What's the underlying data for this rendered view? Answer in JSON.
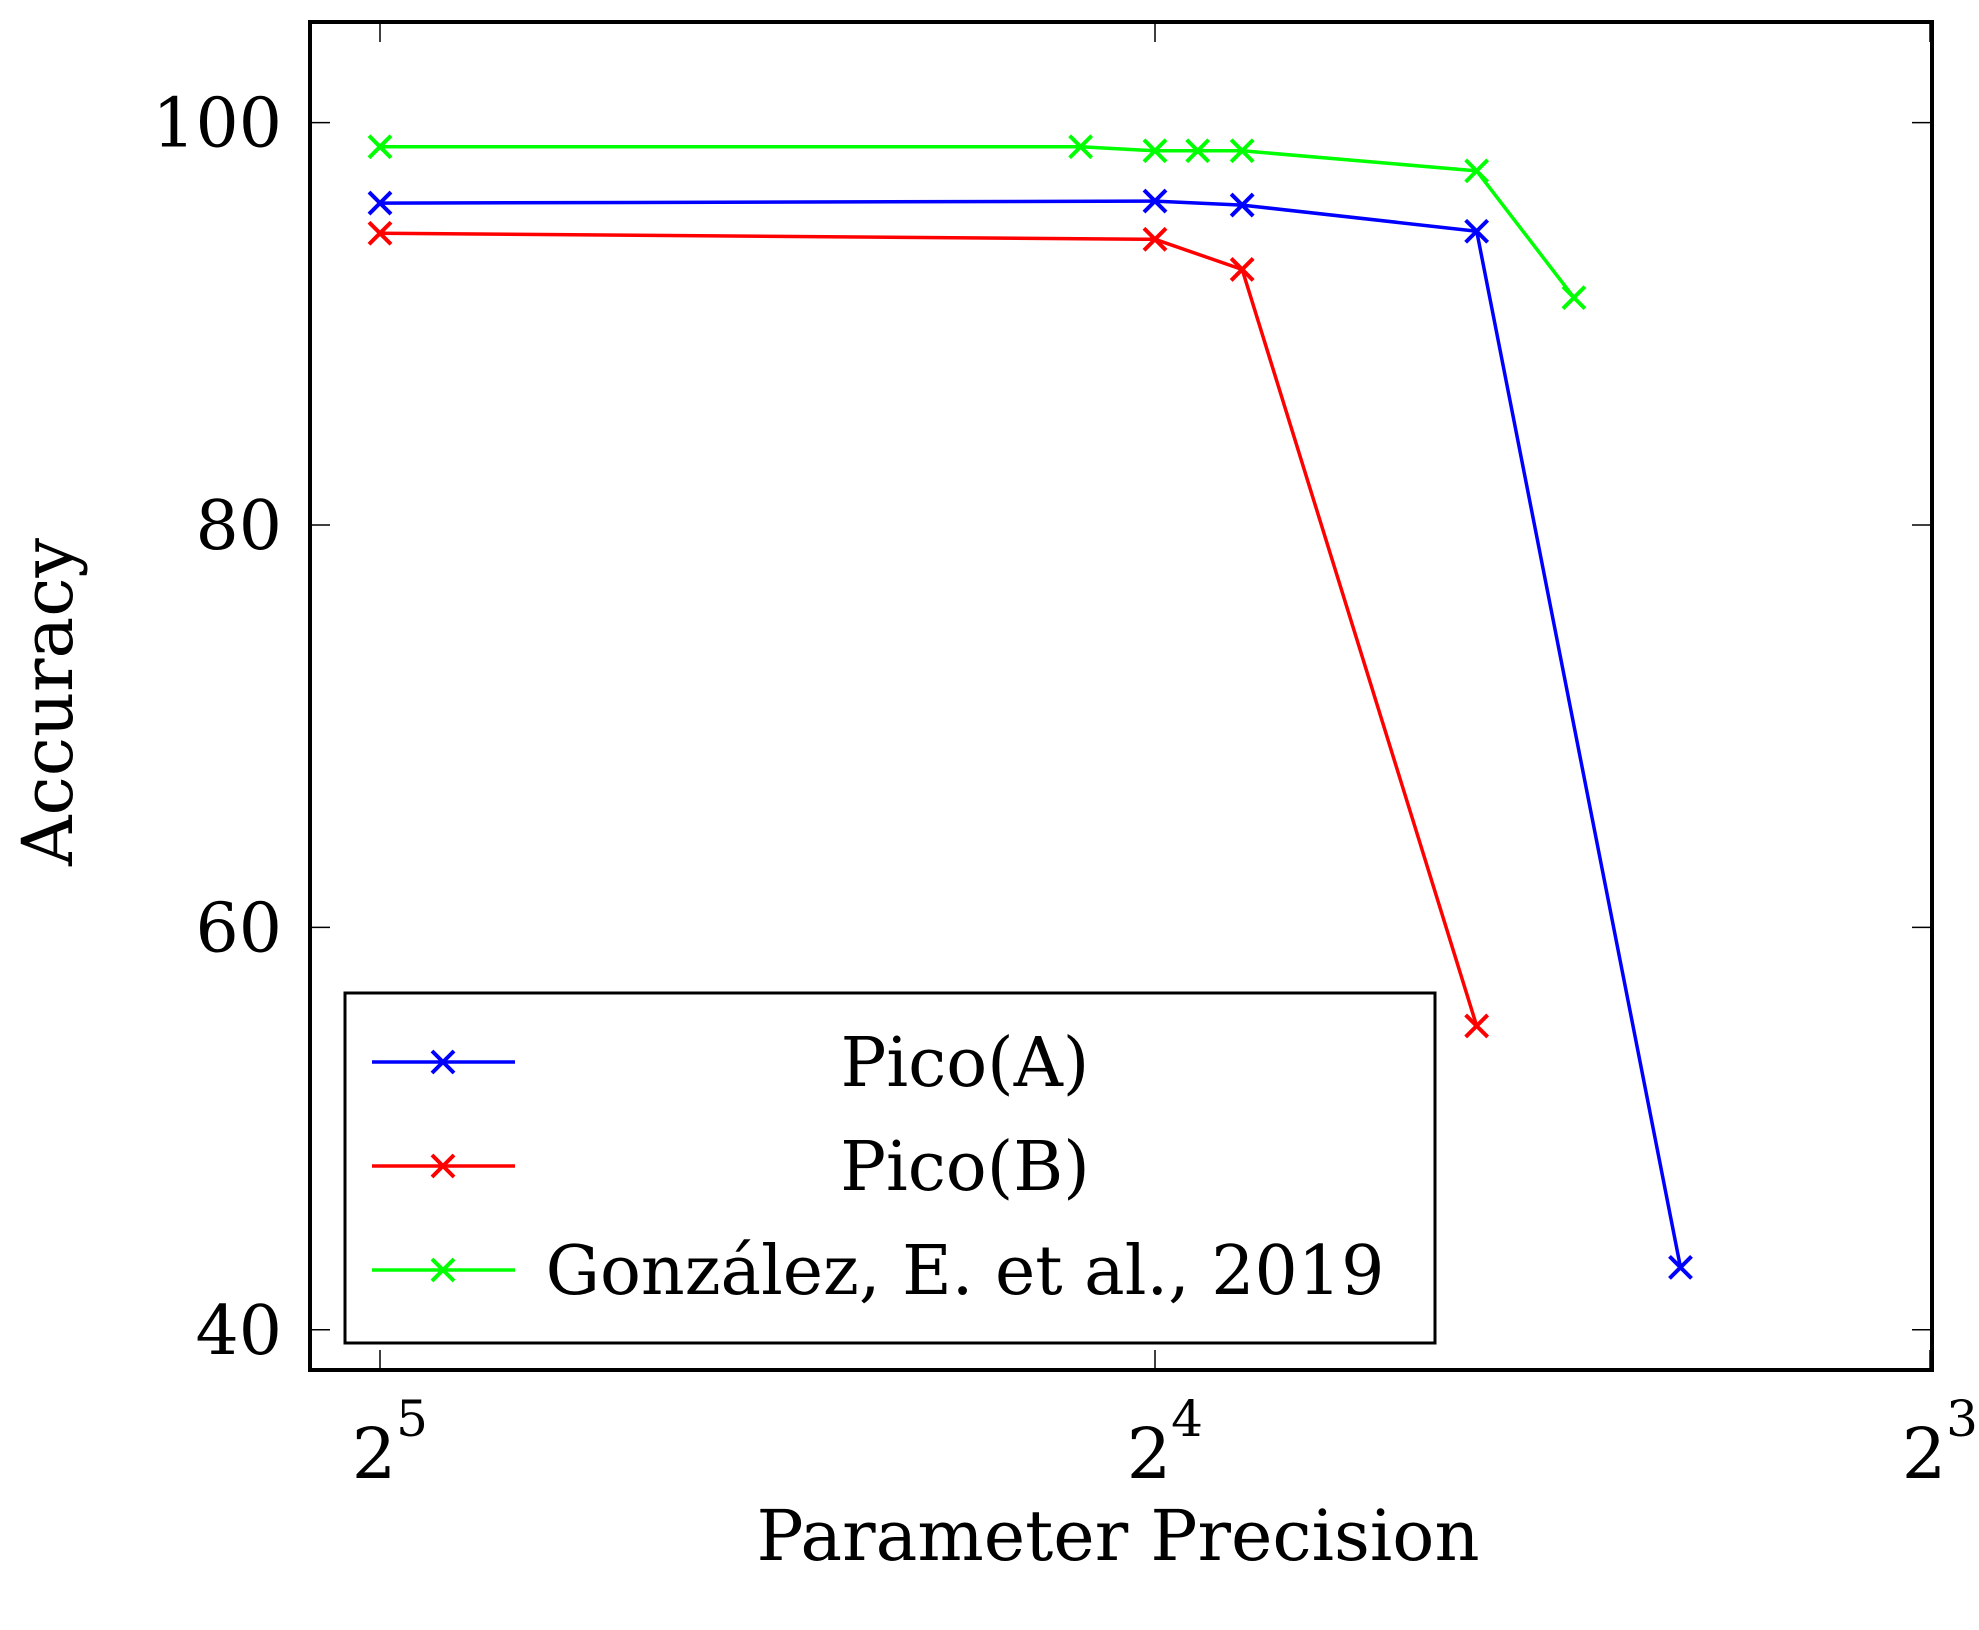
{
  "chart_data": {
    "type": "line",
    "title": "",
    "xlabel": "Parameter Precision",
    "ylabel": "Accuracy",
    "x_scale": "log2",
    "x_reversed": true,
    "xlim": [
      32,
      8
    ],
    "ylim": [
      38,
      105
    ],
    "x_ticks": [
      {
        "value": 32,
        "base": "2",
        "exp": "5"
      },
      {
        "value": 16,
        "base": "2",
        "exp": "4"
      },
      {
        "value": 8,
        "base": "2",
        "exp": "3"
      }
    ],
    "y_ticks": [
      40,
      60,
      80,
      100
    ],
    "grid": false,
    "legend_position": "bottom-left",
    "series": [
      {
        "name": "Pico(A)",
        "color": "#0000ff",
        "marker": "x",
        "x": [
          32,
          16,
          14.8,
          12,
          10
        ],
        "y": [
          96.0,
          96.1,
          95.9,
          94.6,
          43.1
        ]
      },
      {
        "name": "Pico(B)",
        "color": "#ff0000",
        "marker": "x",
        "x": [
          32,
          16,
          14.8,
          12
        ],
        "y": [
          94.5,
          94.2,
          92.7,
          55.1
        ]
      },
      {
        "name": "González, E. et al., 2019",
        "color": "#00ff00",
        "marker": "x",
        "x": [
          32,
          17.1,
          16,
          15.4,
          14.8,
          12,
          11
        ],
        "y": [
          98.8,
          98.8,
          98.6,
          98.6,
          98.6,
          97.6,
          91.3
        ]
      }
    ]
  }
}
